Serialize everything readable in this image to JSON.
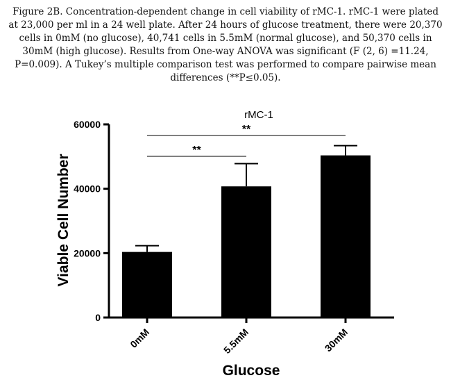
{
  "caption": {
    "lines": [
      "Figure 2B. Concentration-dependent change in cell viability of rMC-1. rMC-1 were plated",
      "at 23,000 per ml in a 24 well plate. After 24 hours of glucose treatment, there were 20,370",
      "cells in 0mM (no glucose), 40,741 cells in 5.5mM (normal glucose), and 50,370 cells in",
      "30mM (high glucose). Results from One-way ANOVA was significant (F (2, 6) =11.24,",
      "P=0.009). A Tukey’s multiple comparison test was performed to compare pairwise mean",
      "differences (**P≤0.05)."
    ]
  },
  "chart_data": {
    "type": "bar",
    "title": "rMC-1",
    "xlabel": "Glucose",
    "ylabel": "Viable Cell Number",
    "categories": [
      "0mM",
      "5.5mM",
      "30mM"
    ],
    "values": [
      20370,
      40741,
      50370
    ],
    "error_upper": [
      22300,
      47800,
      53400
    ],
    "ylim": [
      0,
      60000
    ],
    "yticks": [
      0,
      20000,
      40000,
      60000
    ],
    "bar_color": "#000000",
    "significance": [
      {
        "from": 0,
        "to": 1,
        "label": "**"
      },
      {
        "from": 0,
        "to": 2,
        "label": "**"
      }
    ]
  }
}
